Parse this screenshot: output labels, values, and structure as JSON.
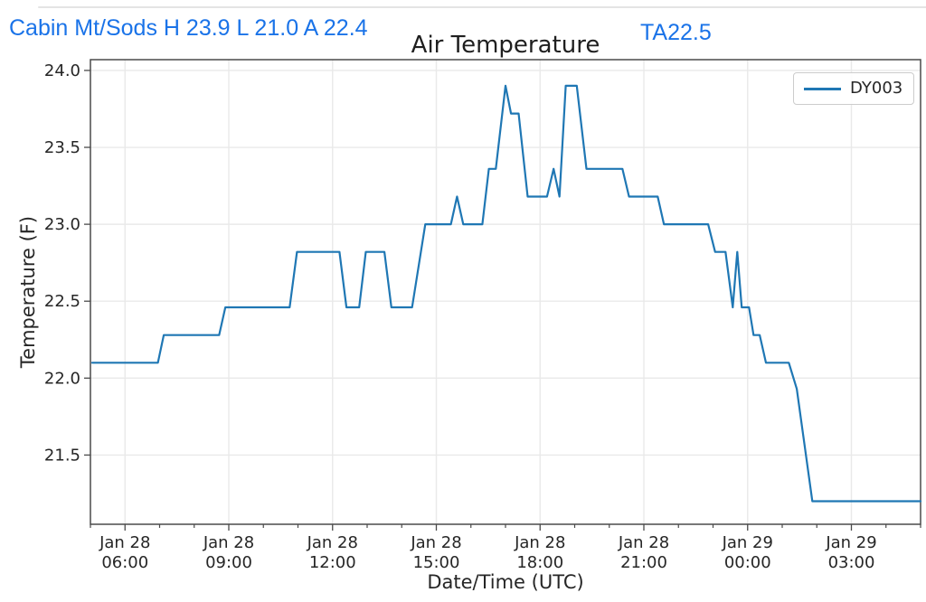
{
  "header": {
    "station_summary": "Cabin Mt/Sods H 23.9 L 21.0 A 22.4",
    "ta_reading": "TA22.5",
    "accent_color": "#1a73e8"
  },
  "chart_data": {
    "type": "line",
    "title": "Air Temperature",
    "xlabel": "Date/Time (UTC)",
    "ylabel": "Temperature (F)",
    "grid": true,
    "legend": {
      "position": "upper right",
      "entries": [
        "DY003"
      ]
    },
    "line_color": "#1f77b4",
    "x_unit": "hours since Jan 28 00:00 UTC",
    "xlim": [
      5,
      29
    ],
    "ylim": [
      21.05,
      24.07
    ],
    "y_ticks": [
      21.5,
      22.0,
      22.5,
      23.0,
      23.5,
      24.0
    ],
    "x_minor_tick_every_hours": 1,
    "x_ticks": [
      {
        "t": 6,
        "line1": "Jan 28",
        "line2": "06:00"
      },
      {
        "t": 9,
        "line1": "Jan 28",
        "line2": "09:00"
      },
      {
        "t": 12,
        "line1": "Jan 28",
        "line2": "12:00"
      },
      {
        "t": 15,
        "line1": "Jan 28",
        "line2": "15:00"
      },
      {
        "t": 18,
        "line1": "Jan 28",
        "line2": "18:00"
      },
      {
        "t": 21,
        "line1": "Jan 28",
        "line2": "21:00"
      },
      {
        "t": 24,
        "line1": "Jan 29",
        "line2": "00:00"
      },
      {
        "t": 27,
        "line1": "Jan 29",
        "line2": "03:00"
      }
    ],
    "series": [
      {
        "name": "DY003",
        "points": [
          [
            5.05,
            22.1
          ],
          [
            6.95,
            22.1
          ],
          [
            7.12,
            22.28
          ],
          [
            8.72,
            22.28
          ],
          [
            8.9,
            22.46
          ],
          [
            10.76,
            22.46
          ],
          [
            10.97,
            22.82
          ],
          [
            12.2,
            22.82
          ],
          [
            12.4,
            22.46
          ],
          [
            12.77,
            22.46
          ],
          [
            12.96,
            22.82
          ],
          [
            13.5,
            22.82
          ],
          [
            13.7,
            22.46
          ],
          [
            14.3,
            22.46
          ],
          [
            14.68,
            23.0
          ],
          [
            15.42,
            23.0
          ],
          [
            15.6,
            23.18
          ],
          [
            15.78,
            23.0
          ],
          [
            16.33,
            23.0
          ],
          [
            16.52,
            23.36
          ],
          [
            16.72,
            23.36
          ],
          [
            17.0,
            23.9
          ],
          [
            17.16,
            23.72
          ],
          [
            17.38,
            23.72
          ],
          [
            17.64,
            23.18
          ],
          [
            18.2,
            23.18
          ],
          [
            18.39,
            23.36
          ],
          [
            18.56,
            23.18
          ],
          [
            18.74,
            23.9
          ],
          [
            19.06,
            23.9
          ],
          [
            19.34,
            23.36
          ],
          [
            20.38,
            23.36
          ],
          [
            20.57,
            23.18
          ],
          [
            21.4,
            23.18
          ],
          [
            21.58,
            23.0
          ],
          [
            22.86,
            23.0
          ],
          [
            23.06,
            22.82
          ],
          [
            23.36,
            22.82
          ],
          [
            23.57,
            22.46
          ],
          [
            23.7,
            22.82
          ],
          [
            23.83,
            22.46
          ],
          [
            24.04,
            22.46
          ],
          [
            24.17,
            22.28
          ],
          [
            24.35,
            22.28
          ],
          [
            24.53,
            22.1
          ],
          [
            25.19,
            22.1
          ],
          [
            25.42,
            21.93
          ],
          [
            25.87,
            21.2
          ],
          [
            29.0,
            21.2
          ]
        ]
      }
    ]
  }
}
